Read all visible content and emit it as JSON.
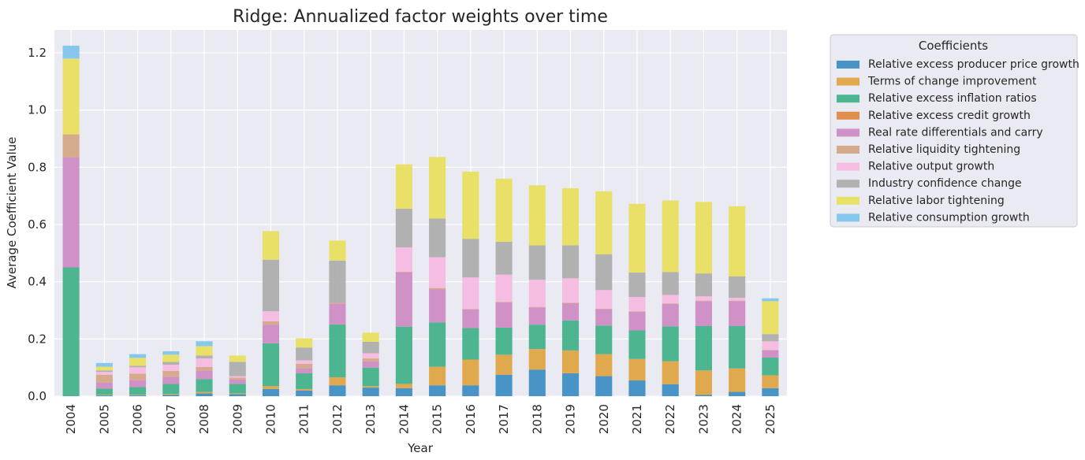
{
  "chart_data": {
    "type": "bar",
    "stacked": true,
    "title": "Ridge: Annualized factor weights over time",
    "xlabel": "Year",
    "ylabel": "Average Coefficient Value",
    "ylim": [
      0,
      1.28
    ],
    "yticks": [
      "0.0",
      "0.2",
      "0.4",
      "0.6",
      "0.8",
      "1.0",
      "1.2"
    ],
    "grid": true,
    "legend_title": "Coefficients",
    "legend_position": "outside-top-right",
    "categories": [
      "2004",
      "2005",
      "2006",
      "2007",
      "2008",
      "2009",
      "2010",
      "2011",
      "2012",
      "2013",
      "2014",
      "2015",
      "2016",
      "2017",
      "2018",
      "2019",
      "2020",
      "2021",
      "2022",
      "2023",
      "2024",
      "2025"
    ],
    "series": [
      {
        "name": "Relative excess producer price growth",
        "color": "#3a8cc2",
        "values": [
          0,
          0.003,
          0.003,
          0.005,
          0.01,
          0.007,
          0.025,
          0.02,
          0.038,
          0.03,
          0.028,
          0.038,
          0.038,
          0.075,
          0.093,
          0.08,
          0.07,
          0.055,
          0.042,
          0.005,
          0.015,
          0.028
        ]
      },
      {
        "name": "Terms of change improvement",
        "color": "#dfa33f",
        "values": [
          0,
          0.002,
          0.002,
          0.003,
          0.005,
          0.003,
          0.01,
          0.005,
          0.028,
          0.005,
          0.015,
          0.065,
          0.09,
          0.07,
          0.072,
          0.08,
          0.077,
          0.075,
          0.08,
          0.085,
          0.082,
          0.045
        ]
      },
      {
        "name": "Relative excess inflation ratios",
        "color": "#40b089",
        "values": [
          0.45,
          0.022,
          0.027,
          0.035,
          0.045,
          0.033,
          0.15,
          0.055,
          0.185,
          0.065,
          0.2,
          0.155,
          0.11,
          0.095,
          0.085,
          0.105,
          0.1,
          0.1,
          0.122,
          0.155,
          0.148,
          0.062
        ]
      },
      {
        "name": "Relative excess credit growth",
        "color": "#de8740",
        "values": [
          0,
          0,
          0,
          0,
          0,
          0,
          0,
          0,
          0,
          0,
          0,
          0,
          0,
          0,
          0,
          0,
          0,
          0,
          0,
          0,
          0,
          0
        ]
      },
      {
        "name": "Real rate differentials and carry",
        "color": "#cc89c2",
        "values": [
          0.385,
          0.02,
          0.025,
          0.025,
          0.03,
          0.015,
          0.065,
          0.018,
          0.072,
          0.022,
          0.19,
          0.115,
          0.065,
          0.088,
          0.06,
          0.06,
          0.057,
          0.065,
          0.078,
          0.087,
          0.087,
          0.025
        ]
      },
      {
        "name": "Relative liquidity tightening",
        "color": "#d3a582",
        "values": [
          0.08,
          0.028,
          0.022,
          0.02,
          0.012,
          0.007,
          0.012,
          0.015,
          0.003,
          0.01,
          0.002,
          0.005,
          0.002,
          0.002,
          0.002,
          0.002,
          0.002,
          0.002,
          0.002,
          0.002,
          0.002,
          0.002
        ]
      },
      {
        "name": "Relative output growth",
        "color": "#f5b8e0",
        "values": [
          0,
          0.01,
          0.022,
          0.022,
          0.03,
          0.005,
          0.035,
          0.012,
          0,
          0.018,
          0.085,
          0.108,
          0.11,
          0.095,
          0.095,
          0.085,
          0.065,
          0.05,
          0.03,
          0.015,
          0.01,
          0.03
        ]
      },
      {
        "name": "Industry confidence change",
        "color": "#ababab",
        "values": [
          0,
          0.005,
          0.005,
          0.01,
          0.01,
          0.05,
          0.18,
          0.045,
          0.148,
          0.04,
          0.135,
          0.135,
          0.135,
          0.115,
          0.12,
          0.115,
          0.125,
          0.085,
          0.08,
          0.08,
          0.075,
          0.025
        ]
      },
      {
        "name": "Relative labor tightening",
        "color": "#e8de5c",
        "values": [
          0.265,
          0.013,
          0.028,
          0.025,
          0.033,
          0.022,
          0.1,
          0.032,
          0.07,
          0.032,
          0.155,
          0.215,
          0.235,
          0.22,
          0.21,
          0.2,
          0.22,
          0.24,
          0.25,
          0.25,
          0.245,
          0.115
        ]
      },
      {
        "name": "Relative consumption growth",
        "color": "#7dc3ee",
        "values": [
          0.045,
          0.013,
          0.013,
          0.012,
          0.017,
          0,
          0,
          0,
          0,
          0,
          0,
          0,
          0,
          0,
          0,
          0,
          0,
          0,
          0,
          0,
          0,
          0.01
        ]
      }
    ]
  }
}
